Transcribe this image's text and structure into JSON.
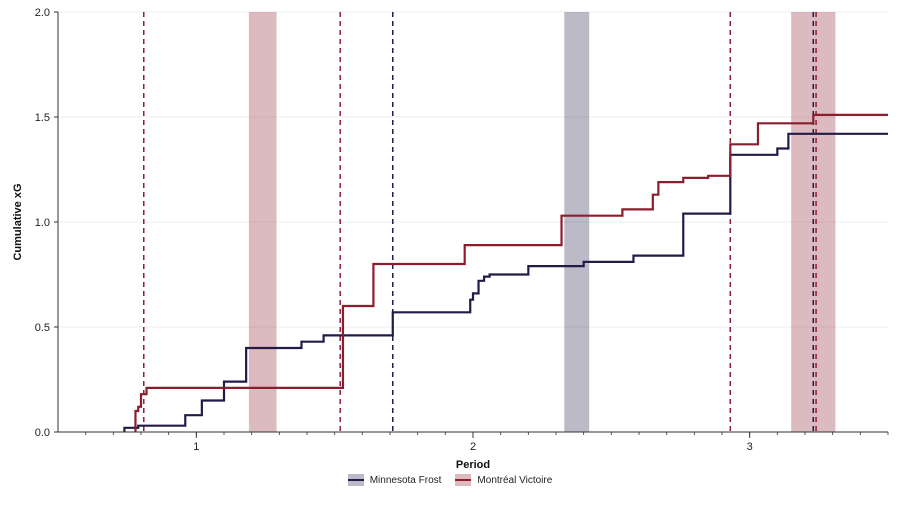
{
  "chart_data": {
    "type": "line",
    "step": true,
    "xlabel": "Period",
    "ylabel": "Cumulative xG",
    "xlim": [
      0.5,
      3.5
    ],
    "ylim": [
      0,
      2.0
    ],
    "x_ticks": [
      1,
      2,
      3
    ],
    "y_ticks": [
      "0.0",
      "0.5",
      "1.0",
      "1.5",
      "2.0"
    ],
    "grid": "horizontal",
    "legend_position": "bottom",
    "colors": {
      "Minnesota Frost": "#221b47",
      "Montréal Victoire": "#8c1d2e"
    },
    "series": [
      {
        "name": "Minnesota Frost",
        "color": "#221b47",
        "x": [
          0.74,
          0.79,
          0.96,
          1.02,
          1.1,
          1.18,
          1.38,
          1.46,
          1.52,
          1.71,
          1.99,
          2.0,
          2.02,
          2.04,
          2.06,
          2.2,
          2.4,
          2.58,
          2.76,
          2.93,
          2.95,
          3.1,
          3.14,
          3.5
        ],
        "values": [
          0.02,
          0.03,
          0.08,
          0.15,
          0.24,
          0.4,
          0.43,
          0.46,
          0.46,
          0.57,
          0.63,
          0.66,
          0.72,
          0.74,
          0.75,
          0.79,
          0.81,
          0.84,
          1.04,
          1.32,
          1.32,
          1.35,
          1.42,
          1.42
        ]
      },
      {
        "name": "Montréal Victoire",
        "color": "#8c1d2e",
        "x": [
          0.78,
          0.79,
          0.8,
          0.82,
          1.52,
          1.53,
          1.62,
          1.64,
          1.97,
          2.32,
          2.54,
          2.65,
          2.67,
          2.76,
          2.85,
          2.93,
          3.03,
          3.23,
          3.5
        ],
        "values": [
          0.1,
          0.12,
          0.18,
          0.21,
          0.21,
          0.6,
          0.6,
          0.8,
          0.89,
          1.03,
          1.06,
          1.13,
          1.19,
          1.21,
          1.22,
          1.37,
          1.47,
          1.51,
          1.51
        ]
      }
    ],
    "goal_lines": [
      {
        "team": "Montréal Victoire",
        "x": 0.81
      },
      {
        "team": "Montréal Victoire",
        "x": 1.52
      },
      {
        "team": "Minnesota Frost",
        "x": 1.71
      },
      {
        "team": "Montréal Victoire",
        "x": 2.93
      },
      {
        "team": "Minnesota Frost",
        "x": 3.23
      },
      {
        "team": "Montréal Victoire",
        "x": 3.24
      }
    ],
    "penalty_bands": [
      {
        "team": "Montréal Victoire",
        "x": [
          1.19,
          1.29
        ]
      },
      {
        "team": "Minnesota Frost",
        "x": [
          2.33,
          2.42
        ]
      },
      {
        "team": "Montréal Victoire",
        "x": [
          3.15,
          3.31
        ]
      }
    ]
  },
  "legend": {
    "items": [
      {
        "label": "Minnesota Frost",
        "color": "#221b47"
      },
      {
        "label": "Montréal Victoire",
        "color": "#8c1d2e"
      }
    ]
  }
}
